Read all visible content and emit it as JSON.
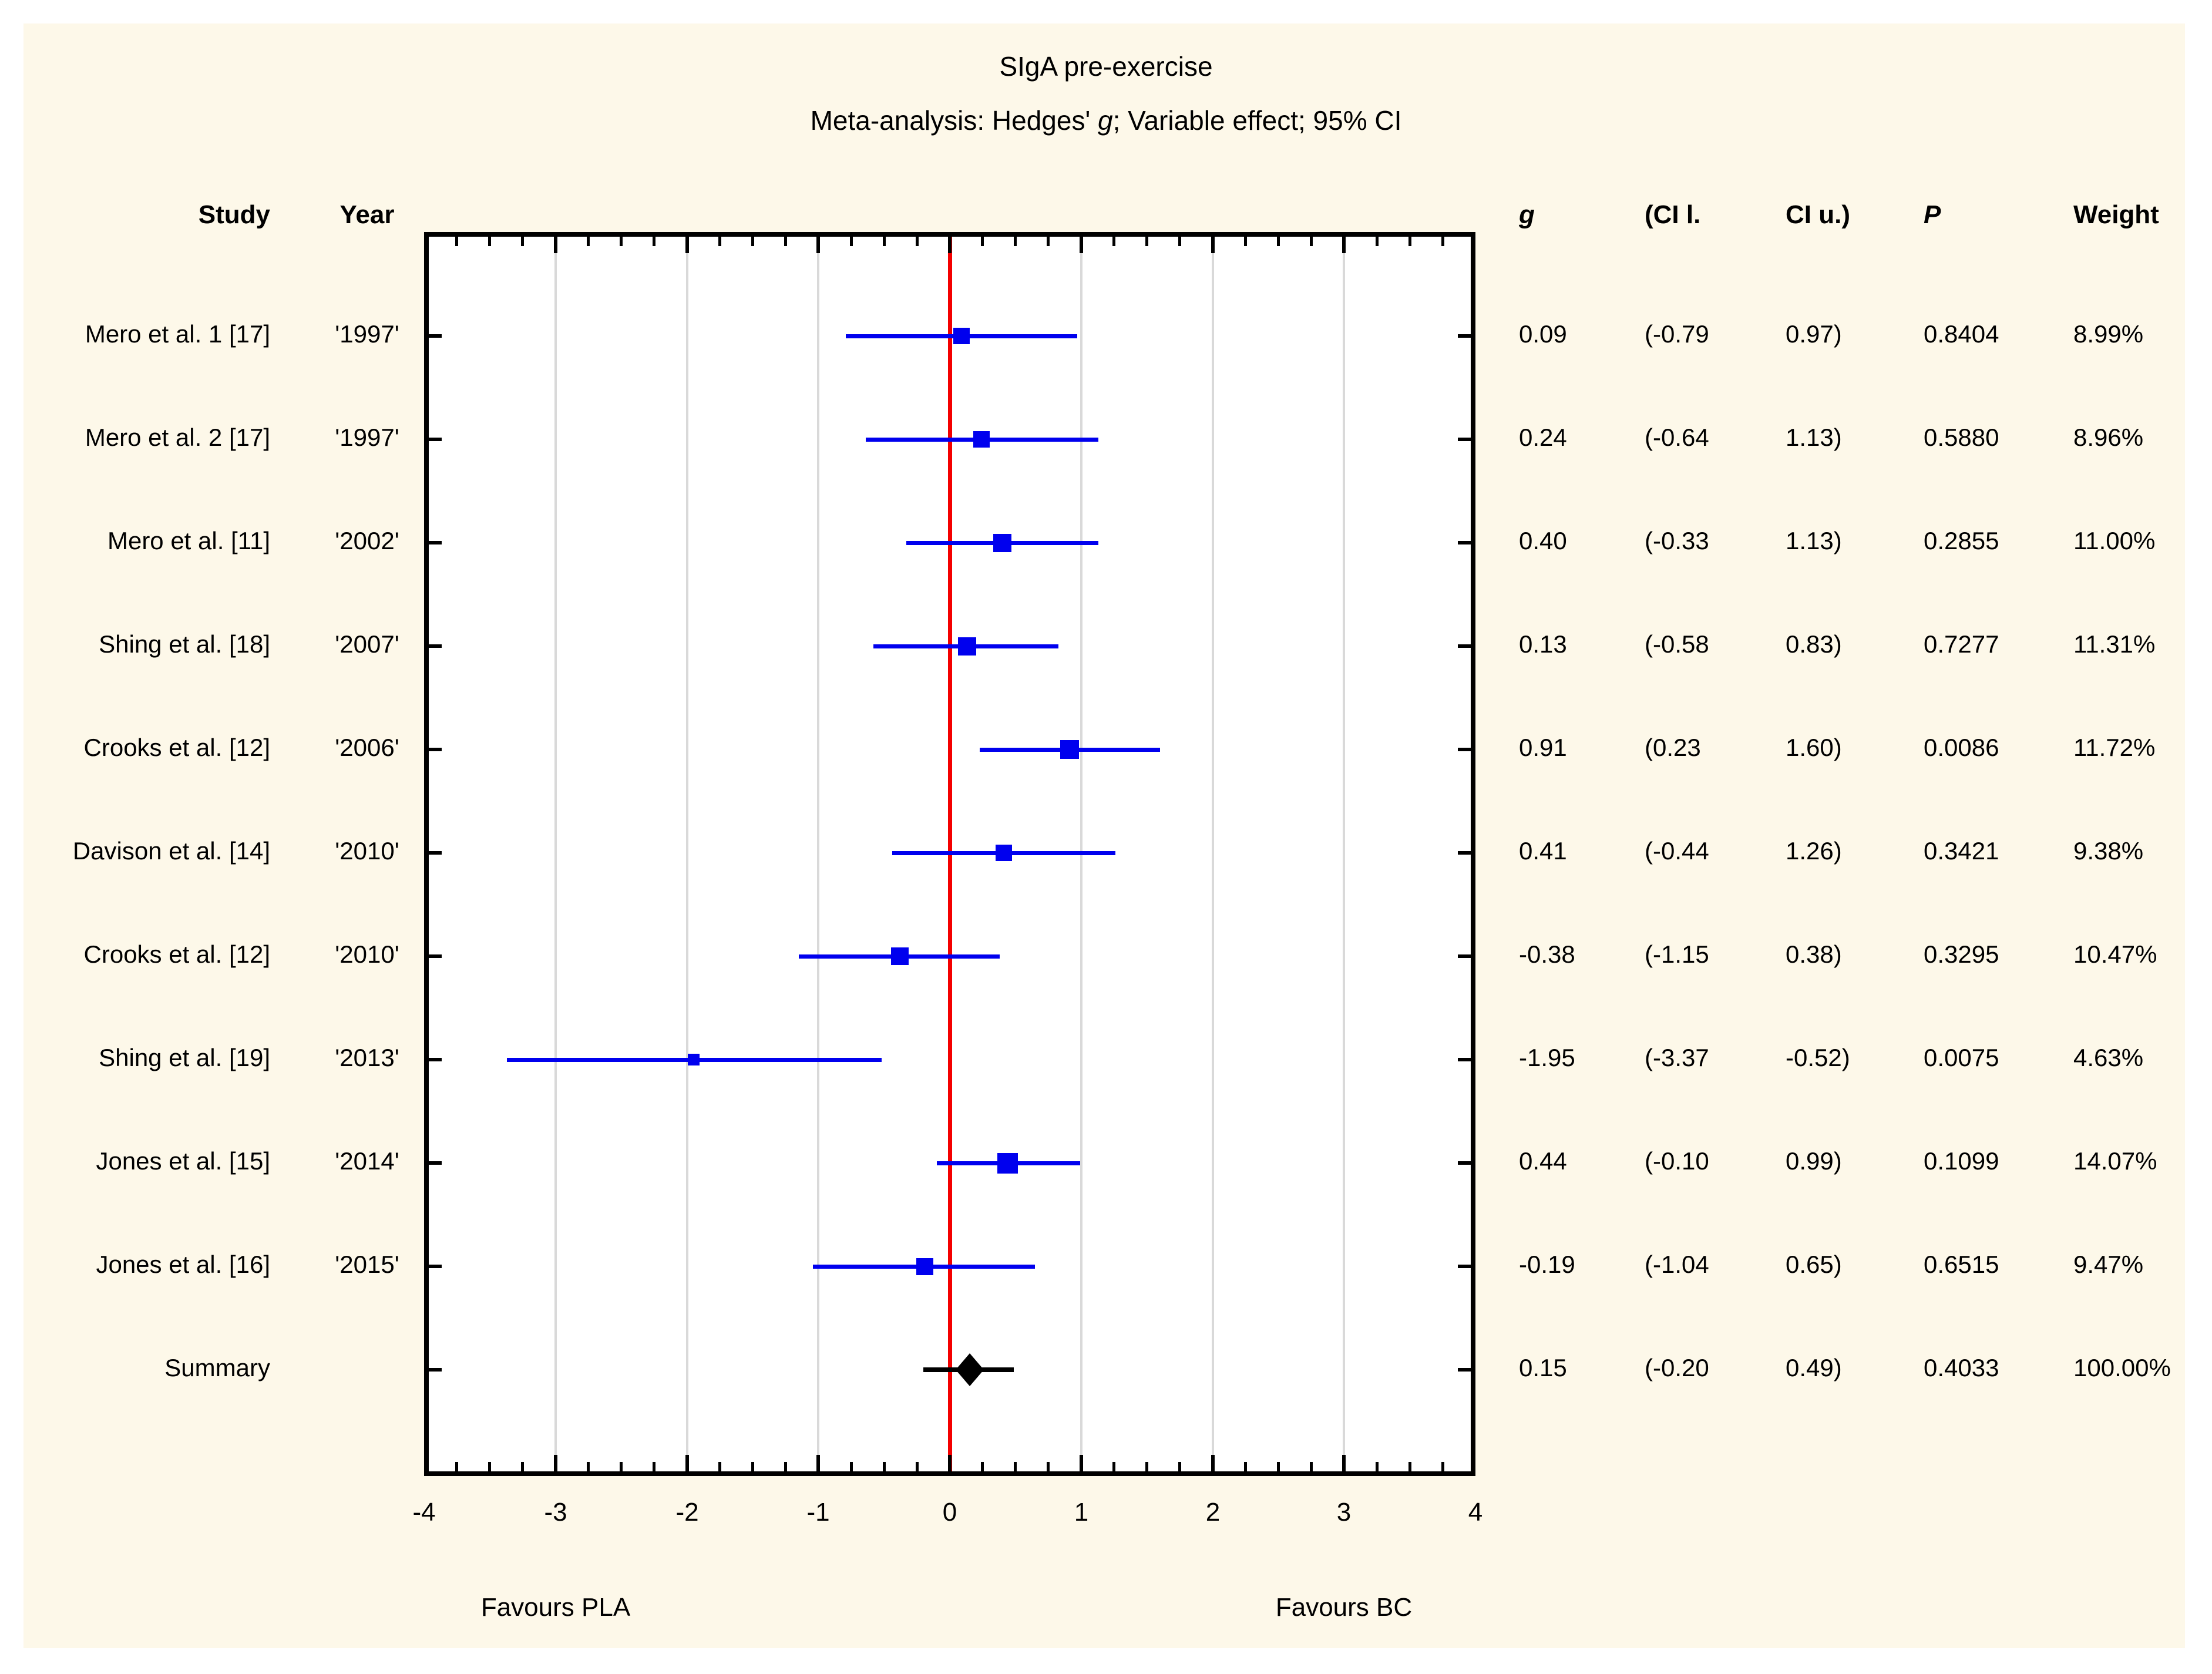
{
  "title": "SIgA pre-exercise",
  "subtitle_parts": {
    "prefix": "Meta-analysis: Hedges' ",
    "g": "g",
    "suffix": "; Variable effect; 95% CI"
  },
  "columns": {
    "study": "Study",
    "year": "Year",
    "g": "g",
    "ci_l": "(CI l.",
    "ci_u": "CI u.)",
    "p": "P",
    "weight": "Weight"
  },
  "axis": {
    "favours_left": "Favours PLA",
    "favours_right": "Favours BC"
  },
  "colors": {
    "background": "#fdf8e9",
    "plot_background": "#ffffff",
    "marker_blue": "#0000ee",
    "zero_line_red": "#f40000",
    "gridline_gray": "#d9d9d9",
    "text_black": "#000000"
  },
  "chart_data": {
    "type": "forest",
    "title": "SIgA pre-exercise",
    "subtitle": "Meta-analysis: Hedges' g; Variable effect; 95% CI",
    "x_axis": {
      "min": -4,
      "max": 4,
      "major_ticks": [
        -4,
        -3,
        -2,
        -1,
        0,
        1,
        2,
        3,
        4
      ],
      "minor_step": 0.25,
      "zero_reference_line": 0,
      "grid": true
    },
    "studies": [
      {
        "study": "Mero et al. 1 [17]",
        "year": "'1997'",
        "g": 0.09,
        "ci_lower": -0.79,
        "ci_upper": 0.97,
        "g_text": "0.09",
        "ci_l_text": "(-0.79",
        "ci_u_text": "0.97)",
        "p_text": "0.8404",
        "weight_pct": 8.99,
        "weight_text": "8.99%"
      },
      {
        "study": "Mero et al. 2 [17]",
        "year": "'1997'",
        "g": 0.24,
        "ci_lower": -0.64,
        "ci_upper": 1.13,
        "g_text": "0.24",
        "ci_l_text": "(-0.64",
        "ci_u_text": "1.13)",
        "p_text": "0.5880",
        "weight_pct": 8.96,
        "weight_text": "8.96%"
      },
      {
        "study": "Mero et al. [11]",
        "year": "'2002'",
        "g": 0.4,
        "ci_lower": -0.33,
        "ci_upper": 1.13,
        "g_text": "0.40",
        "ci_l_text": "(-0.33",
        "ci_u_text": "1.13)",
        "p_text": "0.2855",
        "weight_pct": 11.0,
        "weight_text": "11.00%"
      },
      {
        "study": "Shing et al. [18]",
        "year": "'2007'",
        "g": 0.13,
        "ci_lower": -0.58,
        "ci_upper": 0.83,
        "g_text": "0.13",
        "ci_l_text": "(-0.58",
        "ci_u_text": "0.83)",
        "p_text": "0.7277",
        "weight_pct": 11.31,
        "weight_text": "11.31%"
      },
      {
        "study": "Crooks et al. [12]",
        "year": "'2006'",
        "g": 0.91,
        "ci_lower": 0.23,
        "ci_upper": 1.6,
        "g_text": "0.91",
        "ci_l_text": "(0.23",
        "ci_u_text": "1.60)",
        "p_text": "0.0086",
        "weight_pct": 11.72,
        "weight_text": "11.72%"
      },
      {
        "study": "Davison et al. [14]",
        "year": "'2010'",
        "g": 0.41,
        "ci_lower": -0.44,
        "ci_upper": 1.26,
        "g_text": "0.41",
        "ci_l_text": "(-0.44",
        "ci_u_text": "1.26)",
        "p_text": "0.3421",
        "weight_pct": 9.38,
        "weight_text": "9.38%"
      },
      {
        "study": "Crooks et al. [12]",
        "year": "'2010'",
        "g": -0.38,
        "ci_lower": -1.15,
        "ci_upper": 0.38,
        "g_text": "-0.38",
        "ci_l_text": "(-1.15",
        "ci_u_text": "0.38)",
        "p_text": "0.3295",
        "weight_pct": 10.47,
        "weight_text": "10.47%"
      },
      {
        "study": "Shing et al. [19]",
        "year": "'2013'",
        "g": -1.95,
        "ci_lower": -3.37,
        "ci_upper": -0.52,
        "g_text": "-1.95",
        "ci_l_text": "(-3.37",
        "ci_u_text": "-0.52)",
        "p_text": "0.0075",
        "weight_pct": 4.63,
        "weight_text": "4.63%"
      },
      {
        "study": "Jones et al. [15]",
        "year": "'2014'",
        "g": 0.44,
        "ci_lower": -0.1,
        "ci_upper": 0.99,
        "g_text": "0.44",
        "ci_l_text": "(-0.10",
        "ci_u_text": "0.99)",
        "p_text": "0.1099",
        "weight_pct": 14.07,
        "weight_text": "14.07%"
      },
      {
        "study": "Jones et al. [16]",
        "year": "'2015'",
        "g": -0.19,
        "ci_lower": -1.04,
        "ci_upper": 0.65,
        "g_text": "-0.19",
        "ci_l_text": "(-1.04",
        "ci_u_text": "0.65)",
        "p_text": "0.6515",
        "weight_pct": 9.47,
        "weight_text": "9.47%"
      }
    ],
    "summary": {
      "study": "Summary",
      "year": "",
      "g": 0.15,
      "ci_lower": -0.2,
      "ci_upper": 0.49,
      "g_text": "0.15",
      "ci_l_text": "(-0.20",
      "ci_u_text": "0.49)",
      "p_text": "0.4033",
      "weight_pct": 100.0,
      "weight_text": "100.00%"
    },
    "xlabel": "",
    "ylabel": "",
    "legend": null
  }
}
